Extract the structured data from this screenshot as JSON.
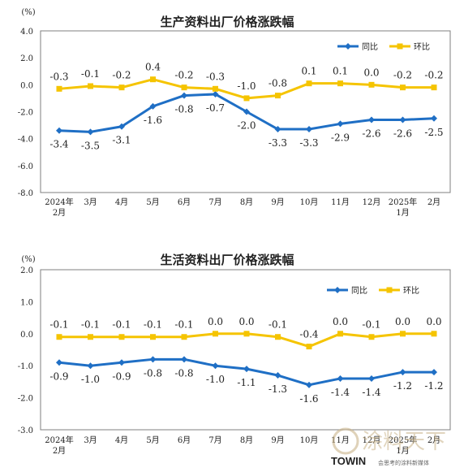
{
  "chart_data": [
    {
      "type": "line",
      "title": "生产资料出厂价格涨跌幅",
      "unit_label": "(%)",
      "categories": [
        "2024年\n2月",
        "3月",
        "4月",
        "5月",
        "6月",
        "7月",
        "8月",
        "9月",
        "10月",
        "11月",
        "12月",
        "2025年\n1月",
        "2月"
      ],
      "ylim": [
        -8.0,
        4.0
      ],
      "yticks": [
        4.0,
        2.0,
        0.0,
        -2.0,
        -4.0,
        -6.0,
        -8.0
      ],
      "grid": false,
      "legend_position": "top-right",
      "series": [
        {
          "name": "同比",
          "color": "#1f6fc5",
          "values": [
            -3.4,
            -3.5,
            -3.1,
            -1.6,
            -0.8,
            -0.7,
            -2.0,
            -3.3,
            -3.3,
            -2.9,
            -2.6,
            -2.6,
            -2.5
          ],
          "label_position": "below"
        },
        {
          "name": "环比",
          "color": "#f5c400",
          "values": [
            -0.3,
            -0.1,
            -0.2,
            0.4,
            -0.2,
            -0.3,
            -1.0,
            -0.8,
            0.1,
            0.1,
            0.0,
            -0.2,
            -0.2
          ],
          "label_position": "above"
        }
      ]
    },
    {
      "type": "line",
      "title": "生活资料出厂价格涨跌幅",
      "unit_label": "(%)",
      "categories": [
        "2024年\n2月",
        "3月",
        "4月",
        "5月",
        "6月",
        "7月",
        "8月",
        "9月",
        "10月",
        "11月",
        "12月",
        "2025年\n1月",
        "2月"
      ],
      "ylim": [
        -3.0,
        2.0
      ],
      "yticks": [
        2.0,
        1.0,
        0.0,
        -1.0,
        -2.0,
        -3.0
      ],
      "grid": false,
      "legend_position": "top-right",
      "series": [
        {
          "name": "同比",
          "color": "#1f6fc5",
          "values": [
            -0.9,
            -1.0,
            -0.9,
            -0.8,
            -0.8,
            -1.0,
            -1.1,
            -1.3,
            -1.6,
            -1.4,
            -1.4,
            -1.2,
            -1.2
          ],
          "label_position": "below"
        },
        {
          "name": "环比",
          "color": "#f5c400",
          "values": [
            -0.1,
            -0.1,
            -0.1,
            -0.1,
            -0.1,
            0.0,
            0.0,
            -0.1,
            -0.4,
            0.0,
            -0.1,
            0.0,
            0.0
          ],
          "label_position": "above"
        }
      ]
    }
  ],
  "watermark": {
    "text": "涂料天下",
    "brand": "TOWIN",
    "subtitle": "会思考的涂料新媒体"
  }
}
